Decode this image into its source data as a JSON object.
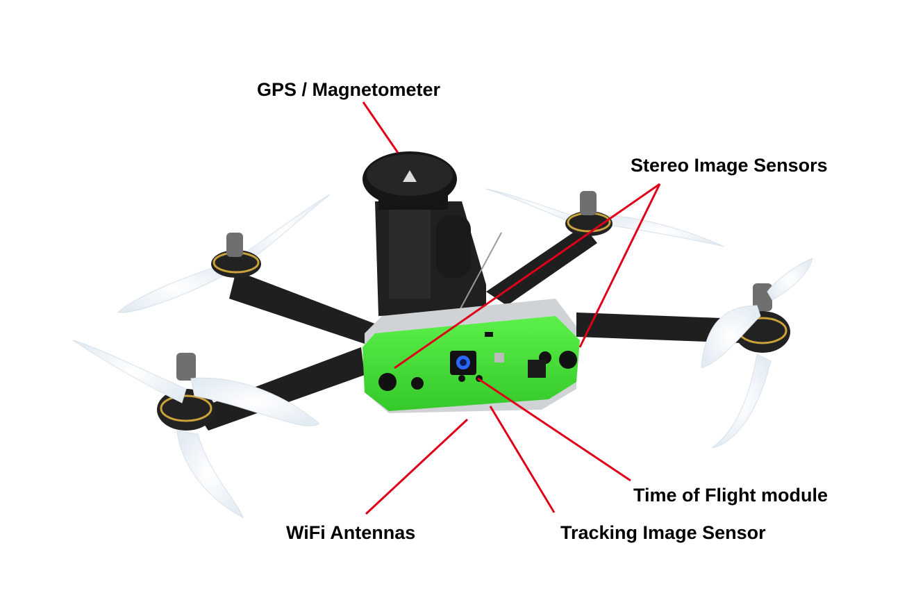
{
  "labels": {
    "gps": "GPS / Magnetometer",
    "stereo": "Stereo Image Sensors",
    "tof": "Time of Flight module",
    "wifi": "WiFi Antennas",
    "tracking": "Tracking Image Sensor"
  },
  "colors": {
    "leader_line": "#e0001a",
    "sensor_board": "#45e03a",
    "frame": "#1a1a1a",
    "propeller": "#eef3f8",
    "motor_ring": "#c9a23a"
  }
}
